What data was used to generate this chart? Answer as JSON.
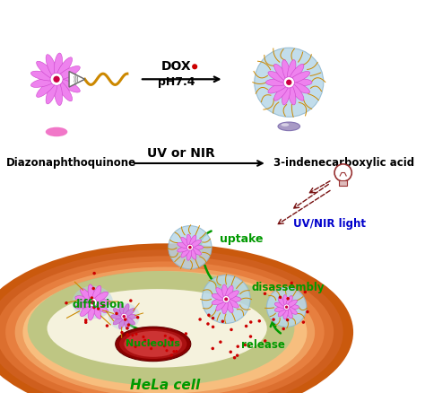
{
  "bg_color": "#ffffff",
  "dox_label": "DOX",
  "dox_dot_color": "#cc0000",
  "ph_label": "pH7.4",
  "uv_nir_label": "UV or NIR",
  "diazo_label": "Diazonaphthoquinone",
  "indene_label": "3-indenecarboxylic acid",
  "uvnir_light_label": "UV/NIR light",
  "uvnir_light_color": "#0000cc",
  "uptake_label": "uptake",
  "disassembly_label": "disassembly",
  "diffusion_label": "diffusion",
  "release_label": "release",
  "nucleolus_label": "Nucleolus",
  "hela_label": "HeLa cell",
  "green_color": "#009900",
  "micelle_shell_color": "#b8d8e8",
  "flower_petal_color": "#ee82ee",
  "flower_center_color": "#cc0044",
  "tail_color": "#cc8800",
  "cell_outer_color": "#cc5500",
  "nucleus_color": "#880000",
  "ray_color": "#771111"
}
